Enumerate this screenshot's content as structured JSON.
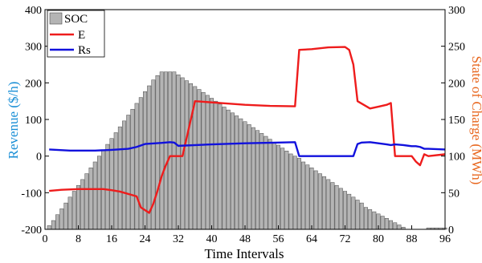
{
  "chart_data": {
    "type": "bar",
    "xlabel": "Time Intervals",
    "ylabel_left": "Revenue ($/h)",
    "ylabel_right": "State of Charge (MWh)",
    "x_ticks": [
      0,
      8,
      16,
      24,
      32,
      40,
      48,
      56,
      64,
      72,
      80,
      88,
      96
    ],
    "xlim": [
      0,
      96
    ],
    "y_left_ticks": [
      -200,
      -100,
      0,
      100,
      200,
      300,
      400
    ],
    "y_left_lim": [
      -200,
      400
    ],
    "y_right_ticks": [
      0,
      50,
      100,
      150,
      200,
      250,
      300
    ],
    "y_right_lim": [
      0,
      300
    ],
    "legend": {
      "position": "top-left",
      "entries": [
        "SOC",
        "E",
        "Rs"
      ]
    },
    "colors": {
      "soc_fill": "#b4b4b4",
      "soc_edge": "#4a4a4a",
      "E": "#ee1c1c",
      "Rs": "#1111dd",
      "left_axis": "#1a8fd6",
      "right_axis": "#e8671f"
    },
    "soc": {
      "name": "SOC",
      "axis": "right",
      "x": [
        1,
        2,
        3,
        4,
        5,
        6,
        7,
        8,
        9,
        10,
        11,
        12,
        13,
        14,
        15,
        16,
        17,
        18,
        19,
        20,
        21,
        22,
        23,
        24,
        25,
        26,
        27,
        28,
        29,
        30,
        31,
        32,
        33,
        34,
        35,
        36,
        37,
        38,
        39,
        40,
        41,
        42,
        43,
        44,
        45,
        46,
        47,
        48,
        49,
        50,
        51,
        52,
        53,
        54,
        55,
        56,
        57,
        58,
        59,
        60,
        61,
        62,
        63,
        64,
        65,
        66,
        67,
        68,
        69,
        70,
        71,
        72,
        73,
        74,
        75,
        76,
        77,
        78,
        79,
        80,
        81,
        82,
        83,
        84,
        85,
        86,
        87,
        88,
        89,
        90,
        91,
        92,
        93,
        94,
        95,
        96
      ],
      "values": [
        5,
        12,
        20,
        28,
        36,
        44,
        52,
        60,
        68,
        76,
        84,
        92,
        100,
        108,
        116,
        124,
        132,
        140,
        148,
        156,
        164,
        172,
        180,
        188,
        196,
        204,
        210,
        215,
        215,
        215,
        215,
        211,
        207,
        203,
        199,
        195,
        191,
        187,
        183,
        179,
        175,
        171,
        167,
        163,
        159,
        155,
        151,
        147,
        143,
        139,
        135,
        131,
        127,
        123,
        119,
        115,
        111,
        107,
        103,
        100,
        97,
        92,
        88,
        84,
        80,
        76,
        72,
        68,
        64,
        60,
        56,
        52,
        48,
        44,
        40,
        36,
        30,
        27,
        24,
        21,
        18,
        15,
        12,
        9,
        6,
        3,
        0,
        0,
        0,
        0,
        0,
        2,
        2,
        2,
        2,
        2
      ]
    },
    "series": [
      {
        "name": "E",
        "axis": "left",
        "x": [
          1,
          4,
          8,
          14,
          16,
          18,
          22,
          23,
          25,
          26,
          27,
          28,
          29,
          30,
          31,
          32,
          33,
          36,
          42,
          48,
          54,
          60,
          61,
          64,
          68,
          72,
          73,
          74,
          75,
          78,
          80,
          82,
          83,
          84,
          85,
          88,
          89,
          90,
          91,
          92,
          96
        ],
        "values": [
          -95,
          -92,
          -90,
          -90,
          -93,
          -97,
          -110,
          -140,
          -155,
          -130,
          -95,
          -55,
          -25,
          0,
          0,
          0,
          0,
          150,
          145,
          140,
          137,
          136,
          290,
          292,
          297,
          298,
          290,
          250,
          150,
          130,
          135,
          140,
          145,
          0,
          0,
          0,
          -15,
          -25,
          5,
          0,
          5
        ]
      },
      {
        "name": "Rs",
        "axis": "left",
        "x": [
          1,
          6,
          12,
          16,
          20,
          22,
          24,
          28,
          30,
          31,
          32,
          40,
          48,
          56,
          60,
          61,
          64,
          68,
          72,
          73,
          74,
          75,
          76,
          78,
          80,
          82,
          83,
          84,
          86,
          88,
          89,
          90,
          91,
          92,
          96
        ],
        "values": [
          18,
          15,
          15,
          17,
          20,
          25,
          33,
          36,
          38,
          37,
          28,
          32,
          35,
          37,
          38,
          0,
          0,
          0,
          0,
          0,
          0,
          33,
          37,
          38,
          35,
          32,
          30,
          32,
          30,
          27,
          27,
          25,
          20,
          20,
          18
        ]
      }
    ]
  }
}
